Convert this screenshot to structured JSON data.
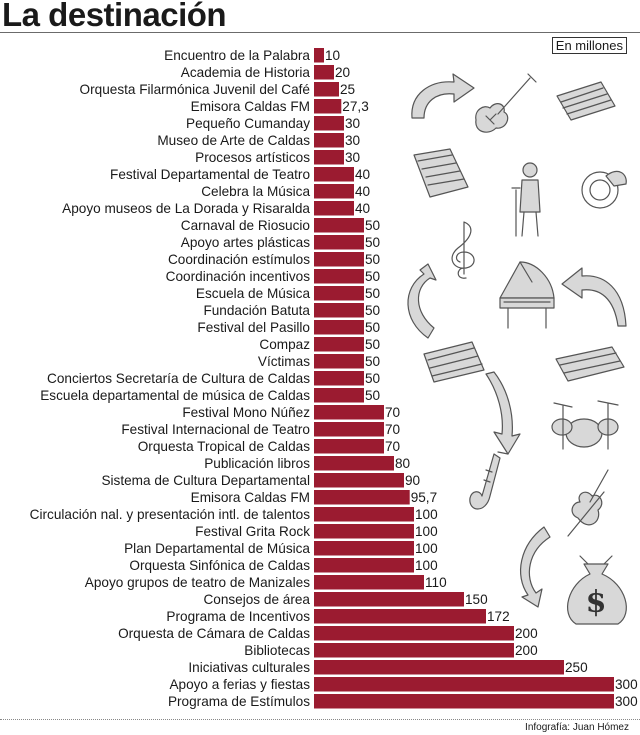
{
  "title": "La destinación",
  "unit_label": "En millones",
  "credit": "Infografía: Juan Hómez",
  "colors": {
    "bar": "#9b1b30",
    "text": "#1a1a1a",
    "rule": "#6b6b6b"
  },
  "decorations": [
    "arrow-icon",
    "electric-guitar-icon",
    "money-stack-icon",
    "money-stack-icon",
    "singer-microphone-icon",
    "french-horn-icon",
    "treble-clef-icon",
    "arrow-icon",
    "grand-piano-icon",
    "arrow-icon",
    "money-stack-icon",
    "money-stack-icon",
    "arrow-icon",
    "drum-kit-icon",
    "saxophone-icon",
    "violin-icon",
    "arrow-icon",
    "money-bag-icon"
  ],
  "chart_data": {
    "type": "bar",
    "orientation": "horizontal",
    "title": "La destinación",
    "unit": "En millones",
    "grid": false,
    "legend": "none",
    "xlim": [
      0,
      300
    ],
    "categories": [
      "Encuentro de la Palabra",
      "Academia de Historia",
      "Orquesta Filarmónica Juvenil del Café",
      "Emisora Caldas FM",
      "Pequeño Cumanday",
      "Museo de Arte de Caldas",
      "Procesos artísticos",
      "Festival Departamental de Teatro",
      "Celebra la Música",
      "Apoyo museos de La Dorada y Risaralda",
      "Carnaval de Riosucio",
      "Apoyo artes plásticas",
      "Coordinación estímulos",
      "Coordinación incentivos",
      "Escuela de Música",
      "Fundación Batuta",
      "Festival del Pasillo",
      "Compaz",
      "Víctimas",
      "Conciertos Secretaría de Cultura de Caldas",
      "Escuela departamental de música de Caldas",
      "Festival Mono Núñez",
      "Festival Internacional de Teatro",
      "Orquesta Tropical de Caldas",
      "Publicación libros",
      "Sistema de Cultura Departamental",
      "Emisora Caldas FM",
      "Circulación nal. y presentación intl. de talentos",
      "Festival Grita Rock",
      "Plan Departamental de Música",
      "Orquesta Sinfónica de Caldas",
      "Apoyo grupos de teatro de Manizales",
      "Consejos de área",
      "Programa de Incentivos",
      "Orquesta de Cámara de Caldas",
      "Bibliotecas",
      "Iniciativas culturales",
      "Apoyo a ferias y fiestas",
      "Programa de Estímulos"
    ],
    "values": [
      10,
      20,
      25,
      27.3,
      30,
      30,
      30,
      40,
      40,
      40,
      50,
      50,
      50,
      50,
      50,
      50,
      50,
      50,
      50,
      50,
      50,
      70,
      70,
      70,
      80,
      90,
      95.7,
      100,
      100,
      100,
      100,
      110,
      150,
      172,
      200,
      200,
      250,
      300,
      300
    ],
    "value_labels": [
      "10",
      "20",
      "25",
      "27,3",
      "30",
      "30",
      "30",
      "40",
      "40",
      "40",
      "50",
      "50",
      "50",
      "50",
      "50",
      "50",
      "50",
      "50",
      "50",
      "50",
      "50",
      "70",
      "70",
      "70",
      "80",
      "90",
      "95,7",
      "100",
      "100",
      "100",
      "100",
      "110",
      "150",
      "172",
      "200",
      "200",
      "250",
      "300",
      "300"
    ]
  }
}
